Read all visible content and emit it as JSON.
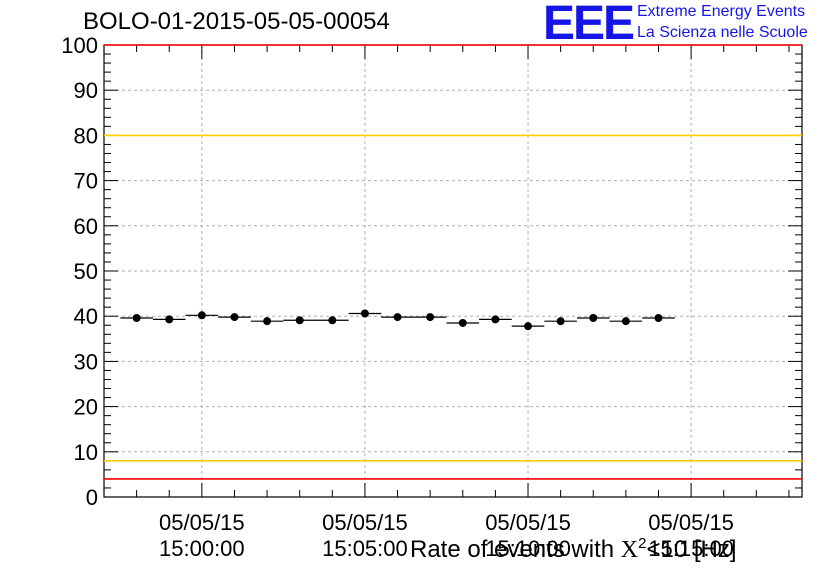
{
  "header": {
    "title": "BOLO-01-2015-05-05-00054",
    "logo_text": "EEE",
    "logo_line1": "Extreme Energy Events",
    "logo_line2": "La Scienza nelle Scuole"
  },
  "chart_data": {
    "type": "scatter",
    "title": "BOLO-01-2015-05-05-00054",
    "xlabel_prefix": "Rate of events with ",
    "xlabel_symbol": "X",
    "xlabel_sup": "2",
    "xlabel_suffix": "<10 [Hz]",
    "ylabel": "",
    "ylim": [
      0,
      100
    ],
    "yticks": [
      0,
      10,
      20,
      30,
      40,
      50,
      60,
      70,
      80,
      90,
      100
    ],
    "xlim_minutes": [
      -3,
      18.4
    ],
    "xtick_labels": [
      {
        "at_minutes": 0,
        "line1": "05/05/15",
        "line2": "15:00:00"
      },
      {
        "at_minutes": 5,
        "line1": "05/05/15",
        "line2": "15:05:00"
      },
      {
        "at_minutes": 10,
        "line1": "05/05/15",
        "line2": "15:10:00"
      },
      {
        "at_minutes": 15,
        "line1": "05/05/15",
        "line2": "15:15:00"
      }
    ],
    "points": [
      {
        "x": -2.0,
        "y": 39.6
      },
      {
        "x": -1.0,
        "y": 39.3
      },
      {
        "x": 0.0,
        "y": 40.2
      },
      {
        "x": 1.0,
        "y": 39.8
      },
      {
        "x": 2.0,
        "y": 38.9
      },
      {
        "x": 3.0,
        "y": 39.1
      },
      {
        "x": 4.0,
        "y": 39.1
      },
      {
        "x": 5.0,
        "y": 40.6
      },
      {
        "x": 6.0,
        "y": 39.8
      },
      {
        "x": 7.0,
        "y": 39.8
      },
      {
        "x": 8.0,
        "y": 38.5
      },
      {
        "x": 9.0,
        "y": 39.3
      },
      {
        "x": 10.0,
        "y": 37.8
      },
      {
        "x": 11.0,
        "y": 38.9
      },
      {
        "x": 12.0,
        "y": 39.6
      },
      {
        "x": 13.0,
        "y": 38.9
      },
      {
        "x": 14.0,
        "y": 39.6
      }
    ],
    "bin_halfwidth_minutes": 0.5,
    "reference_lines": [
      {
        "y": 100,
        "color": "#ff0000"
      },
      {
        "y": 80,
        "color": "#ffcc00"
      },
      {
        "y": 8,
        "color": "#ffcc00"
      },
      {
        "y": 4,
        "color": "#ff0000"
      }
    ],
    "grid": true,
    "marker_color": "#000000"
  }
}
